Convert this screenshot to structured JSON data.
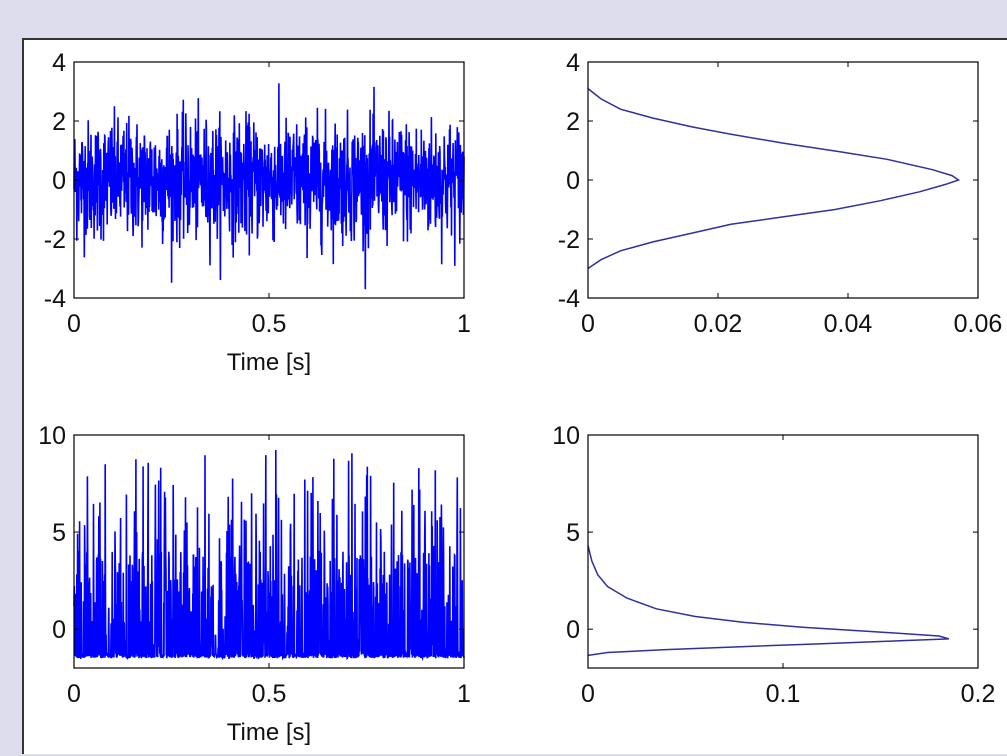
{
  "colors": {
    "page_background": "#dcdcec",
    "figure_background": "#ffffff",
    "signal": "#0000ff",
    "pdf_line": "#3030a0",
    "axes": "#000000"
  },
  "chart_data": [
    {
      "id": "gaussian-time-signal",
      "type": "line",
      "series": [
        {
          "style": "dense-noise",
          "distribution": "gaussian",
          "mean": 0,
          "std": 1,
          "approx_min": -3.7,
          "approx_max": 3.7
        }
      ],
      "xlabel": "Time [s]",
      "xlim": [
        0,
        1
      ],
      "ylim": [
        -4,
        4
      ],
      "xticks": [
        0,
        0.5,
        1
      ],
      "xtick_labels": [
        "0",
        "0.5",
        "1"
      ],
      "yticks": [
        -4,
        -2,
        0,
        2,
        4
      ],
      "ytick_labels": [
        "-4",
        "-2",
        "0",
        "2",
        "4"
      ],
      "grid": false
    },
    {
      "id": "gaussian-pdf",
      "type": "line",
      "orientation": "horizontal-pdf",
      "series": [
        {
          "points": [
            [
              0.0,
              -3.0
            ],
            [
              0.002,
              -2.7
            ],
            [
              0.005,
              -2.4
            ],
            [
              0.01,
              -2.1
            ],
            [
              0.016,
              -1.8
            ],
            [
              0.022,
              -1.5
            ],
            [
              0.03,
              -1.25
            ],
            [
              0.038,
              -1.0
            ],
            [
              0.045,
              -0.7
            ],
            [
              0.051,
              -0.4
            ],
            [
              0.055,
              -0.15
            ],
            [
              0.057,
              0.0
            ],
            [
              0.056,
              0.15
            ],
            [
              0.053,
              0.35
            ],
            [
              0.046,
              0.7
            ],
            [
              0.039,
              0.95
            ],
            [
              0.03,
              1.25
            ],
            [
              0.022,
              1.55
            ],
            [
              0.016,
              1.8
            ],
            [
              0.01,
              2.1
            ],
            [
              0.005,
              2.4
            ],
            [
              0.002,
              2.75
            ],
            [
              0.0,
              3.1
            ]
          ]
        }
      ],
      "xlabel": "",
      "xlim": [
        0,
        0.06
      ],
      "ylim": [
        -4,
        4
      ],
      "xticks": [
        0,
        0.02,
        0.04,
        0.06
      ],
      "xtick_labels": [
        "0",
        "0.02",
        "0.04",
        "0.06"
      ],
      "yticks": [
        -4,
        -2,
        0,
        2,
        4
      ],
      "ytick_labels": [
        "-4",
        "-2",
        "0",
        "2",
        "4"
      ],
      "grid": false
    },
    {
      "id": "skewed-time-signal",
      "type": "line",
      "series": [
        {
          "style": "dense-noise",
          "distribution": "right-skewed",
          "baseline": -1.5,
          "body_max": 4,
          "spike_max": 9.3
        }
      ],
      "xlabel": "Time [s]",
      "xlim": [
        0,
        1
      ],
      "ylim": [
        -2,
        10
      ],
      "xticks": [
        0,
        0.5,
        1
      ],
      "xtick_labels": [
        "0",
        "0.5",
        "1"
      ],
      "yticks": [
        0,
        5,
        10
      ],
      "ytick_labels": [
        "0",
        "5",
        "10"
      ],
      "grid": false
    },
    {
      "id": "skewed-pdf",
      "type": "line",
      "orientation": "horizontal-pdf",
      "series": [
        {
          "points": [
            [
              0.0,
              4.3
            ],
            [
              0.002,
              3.5
            ],
            [
              0.005,
              2.8
            ],
            [
              0.01,
              2.2
            ],
            [
              0.02,
              1.6
            ],
            [
              0.035,
              1.05
            ],
            [
              0.055,
              0.65
            ],
            [
              0.08,
              0.35
            ],
            [
              0.11,
              0.1
            ],
            [
              0.15,
              -0.15
            ],
            [
              0.18,
              -0.35
            ],
            [
              0.185,
              -0.5
            ],
            [
              0.16,
              -0.6
            ],
            [
              0.12,
              -0.75
            ],
            [
              0.08,
              -0.9
            ],
            [
              0.04,
              -1.05
            ],
            [
              0.01,
              -1.2
            ],
            [
              0.0,
              -1.35
            ]
          ]
        }
      ],
      "xlabel": "",
      "xlim": [
        0,
        0.2
      ],
      "ylim": [
        -2,
        10
      ],
      "xticks": [
        0,
        0.1,
        0.2
      ],
      "xtick_labels": [
        "0",
        "0.1",
        "0.2"
      ],
      "yticks": [
        0,
        5,
        10
      ],
      "ytick_labels": [
        "0",
        "5",
        "10"
      ],
      "grid": false
    }
  ]
}
